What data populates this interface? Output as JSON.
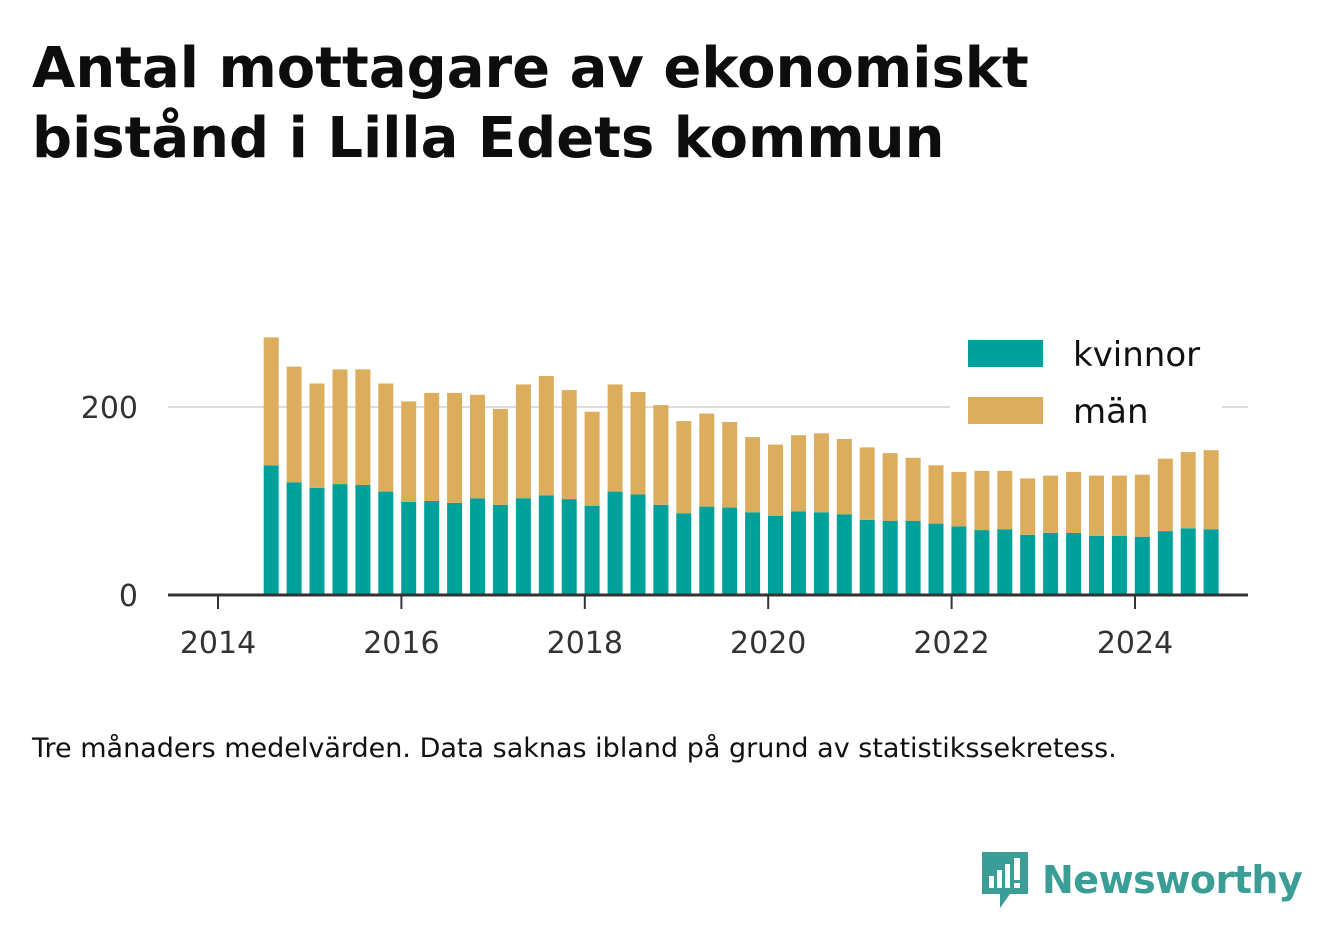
{
  "title": "Antal mottagare av ekonomiskt bistånd i Lilla Edets kommun",
  "note": "Tre månaders medelvärden. Data saknas ibland på grund av statistikssekretess.",
  "brand": {
    "name": "Newsworthy",
    "icon": "newsworthy-logo-icon",
    "color": "#3a9d96"
  },
  "colors": {
    "kvinnor": "#00a19a",
    "man": "#dbad5c",
    "grid": "#dddddd",
    "axis": "#333333"
  },
  "chart_data": {
    "type": "bar",
    "stacked": true,
    "title": "Antal mottagare av ekonomiskt bistånd i Lilla Edets kommun",
    "x_ticks": [
      "2014",
      "2016",
      "2018",
      "2020",
      "2022",
      "2024"
    ],
    "y_ticks": [
      "0",
      "200"
    ],
    "ylim": [
      0,
      280
    ],
    "grid": true,
    "legend_position": "top-right",
    "x": [
      2014.58,
      2014.83,
      2015.08,
      2015.33,
      2015.58,
      2015.83,
      2016.08,
      2016.33,
      2016.58,
      2016.83,
      2017.08,
      2017.33,
      2017.58,
      2017.83,
      2018.08,
      2018.33,
      2018.58,
      2018.83,
      2019.08,
      2019.33,
      2019.58,
      2019.83,
      2020.08,
      2020.33,
      2020.58,
      2020.83,
      2021.08,
      2021.33,
      2021.58,
      2021.83,
      2022.08,
      2022.33,
      2022.58,
      2022.83,
      2023.08,
      2023.33,
      2023.58,
      2023.83,
      2024.08,
      2024.33,
      2024.58,
      2024.83
    ],
    "series": [
      {
        "name": "kvinnor",
        "color": "#00a19a",
        "values": [
          138,
          120,
          114,
          118,
          117,
          110,
          99,
          100,
          98,
          103,
          96,
          103,
          106,
          102,
          95,
          110,
          107,
          96,
          87,
          94,
          93,
          88,
          84,
          89,
          88,
          86,
          80,
          79,
          79,
          76,
          73,
          69,
          70,
          64,
          66,
          66,
          63,
          63,
          62,
          68,
          71,
          70
        ]
      },
      {
        "name": "män",
        "color": "#dbad5c",
        "values": [
          136,
          123,
          111,
          122,
          123,
          115,
          107,
          115,
          117,
          110,
          102,
          121,
          127,
          116,
          100,
          114,
          109,
          106,
          98,
          99,
          91,
          80,
          76,
          81,
          84,
          80,
          77,
          72,
          67,
          62,
          58,
          63,
          62,
          60,
          61,
          65,
          64,
          64,
          66,
          77,
          81,
          84
        ]
      }
    ]
  }
}
